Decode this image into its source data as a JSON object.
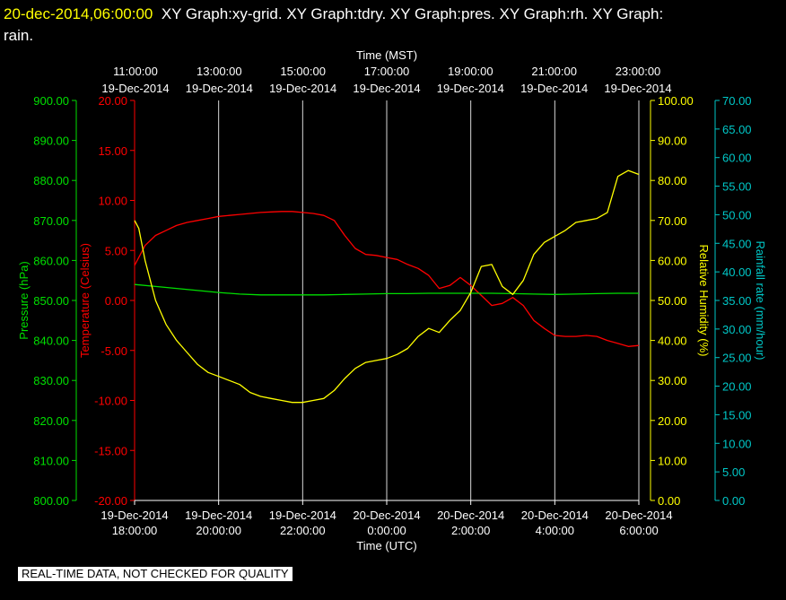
{
  "header": {
    "timestamp": "20-dec-2014,06:00:00",
    "graphs": "XY Graph:xy-grid.  XY Graph:tdry.  XY Graph:pres.  XY Graph:rh.  XY Graph:",
    "graphs_wrap": "rain."
  },
  "footer": {
    "qc_note": "REAL-TIME DATA, NOT CHECKED FOR QUALITY"
  },
  "colors": {
    "background": "#000000",
    "temperature": "#ff0000",
    "pressure": "#00e000",
    "humidity": "#ffff00",
    "rain": "#00c8c8",
    "grid": "#ffffff",
    "text": "#ffffff"
  },
  "chart_data": {
    "type": "line",
    "grid": true,
    "x_top": {
      "label": "Time (MST)",
      "ticks": [
        {
          "time": "11:00:00",
          "date": "19-Dec-2014"
        },
        {
          "time": "13:00:00",
          "date": "19-Dec-2014"
        },
        {
          "time": "15:00:00",
          "date": "19-Dec-2014"
        },
        {
          "time": "17:00:00",
          "date": "19-Dec-2014"
        },
        {
          "time": "19:00:00",
          "date": "19-Dec-2014"
        },
        {
          "time": "21:00:00",
          "date": "19-Dec-2014"
        },
        {
          "time": "23:00:00",
          "date": "19-Dec-2014"
        }
      ]
    },
    "x_bottom": {
      "label": "Time (UTC)",
      "range": [
        "19-Dec-2014 18:00:00",
        "20-Dec-2014 06:00:00"
      ],
      "ticks": [
        {
          "date": "19-Dec-2014",
          "time": "18:00:00"
        },
        {
          "date": "19-Dec-2014",
          "time": "20:00:00"
        },
        {
          "date": "19-Dec-2014",
          "time": "22:00:00"
        },
        {
          "date": "20-Dec-2014",
          "time": "0:00:00"
        },
        {
          "date": "20-Dec-2014",
          "time": "2:00:00"
        },
        {
          "date": "20-Dec-2014",
          "time": "4:00:00"
        },
        {
          "date": "20-Dec-2014",
          "time": "6:00:00"
        }
      ]
    },
    "y_axes": {
      "pressure": {
        "label": "Pressure (hPa)",
        "range": [
          800,
          900
        ],
        "ticks": [
          "900.00",
          "890.00",
          "880.00",
          "870.00",
          "860.00",
          "850.00",
          "840.00",
          "830.00",
          "820.00",
          "810.00",
          "800.00"
        ]
      },
      "temperature": {
        "label": "Temperature (Celsius)",
        "range": [
          -20,
          20
        ],
        "ticks": [
          "20.00",
          "15.00",
          "10.00",
          "5.00",
          "0.00",
          "-5.00",
          "-10.00",
          "-15.00",
          "-20.00"
        ]
      },
      "humidity": {
        "label": "Relative Humidity (%)",
        "range": [
          0,
          100
        ],
        "ticks": [
          "100.00",
          "90.00",
          "80.00",
          "70.00",
          "60.00",
          "50.00",
          "40.00",
          "30.00",
          "20.00",
          "10.00",
          "0.00"
        ]
      },
      "rain": {
        "label": "Rainfall rate (mm/hour)",
        "range": [
          0,
          70
        ],
        "ticks": [
          "70.00",
          "65.00",
          "60.00",
          "55.00",
          "50.00",
          "45.00",
          "40.00",
          "35.00",
          "30.00",
          "25.00",
          "20.00",
          "15.00",
          "10.00",
          "5.00",
          "0.00"
        ]
      }
    },
    "series": [
      {
        "name": "tdry",
        "axis": "temperature",
        "x_hours_utc": [
          18,
          18.25,
          18.5,
          18.75,
          19,
          19.25,
          19.5,
          19.75,
          20,
          20.25,
          20.5,
          20.75,
          21,
          21.25,
          21.5,
          21.75,
          22,
          22.25,
          22.5,
          22.75,
          23,
          23.25,
          23.5,
          23.75,
          24,
          24.25,
          24.5,
          24.75,
          25,
          25.25,
          25.5,
          25.75,
          26,
          26.25,
          26.5,
          26.75,
          27,
          27.25,
          27.5,
          27.75,
          28,
          28.25,
          28.5,
          28.75,
          29,
          29.25,
          29.5,
          29.75,
          30
        ],
        "values": [
          3.5,
          5.5,
          6.5,
          7.0,
          7.5,
          7.8,
          8.0,
          8.2,
          8.4,
          8.5,
          8.6,
          8.7,
          8.8,
          8.85,
          8.9,
          8.9,
          8.8,
          8.7,
          8.5,
          8.0,
          6.5,
          5.2,
          4.6,
          4.5,
          4.3,
          4.1,
          3.6,
          3.2,
          2.5,
          1.2,
          1.5,
          2.3,
          1.5,
          0.5,
          -0.5,
          -0.3,
          0.3,
          -0.5,
          -2.0,
          -2.8,
          -3.5,
          -3.6,
          -3.6,
          -3.5,
          -3.6,
          -4.0,
          -4.3,
          -4.6,
          -4.5
        ]
      },
      {
        "name": "pres",
        "axis": "pressure",
        "x_hours_utc": [
          18,
          18.5,
          19,
          19.5,
          20,
          20.5,
          21,
          21.5,
          22,
          22.5,
          23,
          23.5,
          24,
          24.5,
          25,
          25.5,
          26,
          26.5,
          27,
          27.5,
          28,
          28.5,
          29,
          29.5,
          30
        ],
        "values": [
          854.0,
          853.5,
          853.0,
          852.5,
          852.0,
          851.6,
          851.4,
          851.4,
          851.4,
          851.4,
          851.5,
          851.6,
          851.7,
          851.7,
          851.8,
          851.8,
          851.8,
          851.8,
          851.7,
          851.6,
          851.5,
          851.6,
          851.7,
          851.8,
          851.8
        ]
      },
      {
        "name": "rh",
        "axis": "humidity",
        "x_hours_utc": [
          18,
          18.1,
          18.25,
          18.5,
          18.75,
          19,
          19.25,
          19.5,
          19.75,
          20,
          20.25,
          20.5,
          20.75,
          21,
          21.25,
          21.5,
          21.75,
          22,
          22.25,
          22.5,
          22.75,
          23,
          23.25,
          23.5,
          23.75,
          24,
          24.25,
          24.5,
          24.75,
          25,
          25.25,
          25.5,
          25.75,
          26,
          26.25,
          26.5,
          26.75,
          27,
          27.25,
          27.5,
          27.75,
          28,
          28.25,
          28.5,
          28.75,
          29,
          29.25,
          29.5,
          29.75,
          30
        ],
        "values": [
          70,
          68,
          60,
          50,
          44,
          40,
          37,
          34,
          32,
          31,
          30,
          29,
          27,
          26,
          25.5,
          25,
          24.5,
          24.5,
          25,
          25.5,
          27.5,
          30.5,
          33,
          34.5,
          35,
          35.5,
          36.5,
          38,
          41,
          43,
          42,
          45,
          47.5,
          52,
          58.5,
          59,
          53.5,
          51.5,
          55,
          61.5,
          64.5,
          66,
          67.5,
          69.5,
          70,
          70.5,
          72,
          81,
          82.5,
          81.5
        ]
      },
      {
        "name": "rain",
        "axis": "rain",
        "x_hours_utc": [],
        "values": []
      }
    ]
  }
}
